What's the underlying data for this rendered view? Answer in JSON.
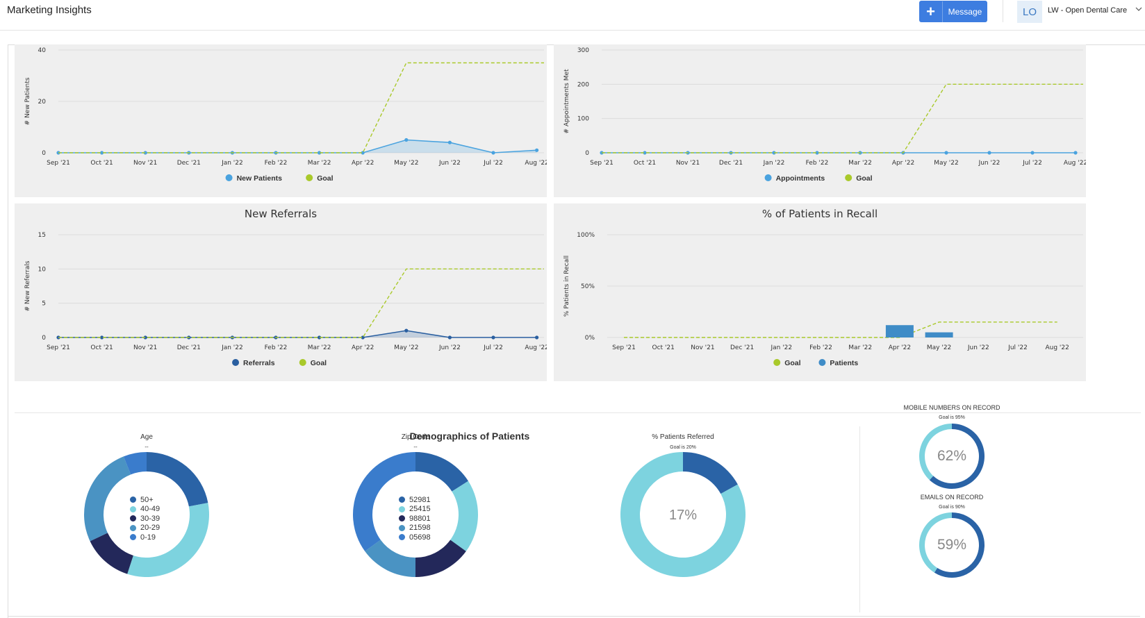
{
  "header": {
    "title": "Marketing Insights",
    "message_label": "Message",
    "avatar_initials": "LO",
    "account_name": "LW - Open Dental Care"
  },
  "months": [
    "Sep '21",
    "Oct '21",
    "Nov '21",
    "Dec '21",
    "Jan '22",
    "Feb '22",
    "Mar '22",
    "Apr '22",
    "May '22",
    "Jun '22",
    "Jul '22",
    "Aug '22"
  ],
  "chart_data": [
    {
      "type": "line",
      "title": "",
      "ylabel": "# New Patients",
      "yticks": [
        "0",
        "20",
        "40"
      ],
      "ylim": [
        0,
        40
      ],
      "categories": [
        "Sep '21",
        "Oct '21",
        "Nov '21",
        "Dec '21",
        "Jan '22",
        "Feb '22",
        "Mar '22",
        "Apr '22",
        "May '22",
        "Jun '22",
        "Jul '22",
        "Aug '22"
      ],
      "series": [
        {
          "name": "New Patients",
          "color": "#4aa3df",
          "values": [
            0,
            0,
            0,
            0,
            0,
            0,
            0,
            0,
            5,
            4,
            0,
            1
          ]
        },
        {
          "name": "Goal",
          "color": "#a9c92a",
          "dashed": true,
          "values": [
            0,
            0,
            0,
            0,
            0,
            0,
            0,
            0,
            35,
            35,
            35,
            35
          ]
        }
      ],
      "legend": "bottom"
    },
    {
      "type": "line",
      "title": "",
      "ylabel": "# Appointments Met",
      "yticks": [
        "0",
        "100",
        "200",
        "300"
      ],
      "ylim": [
        0,
        300
      ],
      "categories": [
        "Sep '21",
        "Oct '21",
        "Nov '21",
        "Dec '21",
        "Jan '22",
        "Feb '22",
        "Mar '22",
        "Apr '22",
        "May '22",
        "Jun '22",
        "Jul '22",
        "Aug '22"
      ],
      "series": [
        {
          "name": "Appointments",
          "color": "#4aa3df",
          "values": [
            0,
            0,
            0,
            0,
            0,
            0,
            0,
            0,
            0,
            0,
            0,
            0
          ]
        },
        {
          "name": "Goal",
          "color": "#a9c92a",
          "dashed": true,
          "values": [
            0,
            0,
            0,
            0,
            0,
            0,
            0,
            0,
            200,
            200,
            200,
            200
          ]
        }
      ],
      "legend": "bottom"
    },
    {
      "type": "line",
      "title": "New Referrals",
      "ylabel": "# New Referrals",
      "yticks": [
        "0",
        "5",
        "10",
        "15"
      ],
      "ylim": [
        0,
        15
      ],
      "categories": [
        "Sep '21",
        "Oct '21",
        "Nov '21",
        "Dec '21",
        "Jan '22",
        "Feb '22",
        "Mar '22",
        "Apr '22",
        "May '22",
        "Jun '22",
        "Jul '22",
        "Aug '22"
      ],
      "series": [
        {
          "name": "Referrals",
          "color": "#2a5fa0",
          "values": [
            0,
            0,
            0,
            0,
            0,
            0,
            0,
            0,
            1,
            0,
            0,
            0
          ]
        },
        {
          "name": "Goal",
          "color": "#a9c92a",
          "dashed": true,
          "values": [
            0,
            0,
            0,
            0,
            0,
            0,
            0,
            0,
            10,
            10,
            10,
            10
          ]
        }
      ],
      "legend": "bottom"
    },
    {
      "type": "bar",
      "title": "% of Patients in Recall",
      "ylabel": "% Patients in Recall",
      "yticks": [
        "0%",
        "50%",
        "100%"
      ],
      "ylim": [
        0,
        100
      ],
      "categories": [
        "Sep '21",
        "Oct '21",
        "Nov '21",
        "Dec '21",
        "Jan '22",
        "Feb '22",
        "Mar '22",
        "Apr '22",
        "May '22",
        "Jun '22",
        "Jul '22",
        "Aug '22"
      ],
      "series": [
        {
          "name": "Goal",
          "color": "#a9c92a",
          "dashed": true,
          "values": [
            0,
            0,
            0,
            0,
            0,
            0,
            0,
            0,
            15,
            15,
            15,
            15
          ]
        },
        {
          "name": "Patients",
          "color": "#3f8cc7",
          "values": [
            0,
            0,
            0,
            0,
            0,
            0,
            0,
            12,
            5,
            0,
            0,
            0
          ]
        }
      ],
      "legend": "bottom"
    }
  ],
  "demographics": {
    "title": "Demographics of Patients",
    "age": {
      "title": "Age",
      "sub": "--",
      "segments": [
        {
          "label": "50+",
          "value": 22,
          "color": "#2a63a6"
        },
        {
          "label": "40-49",
          "value": 33,
          "color": "#7dd3df"
        },
        {
          "label": "30-39",
          "value": 13,
          "color": "#23285a"
        },
        {
          "label": "20-29",
          "value": 26,
          "color": "#4a93c3"
        },
        {
          "label": "0-19",
          "value": 6,
          "color": "#3a7ccc"
        }
      ]
    },
    "zip": {
      "title": "Zip Code",
      "sub": "--",
      "segments": [
        {
          "label": "52981",
          "value": 16,
          "color": "#2a63a6"
        },
        {
          "label": "25415",
          "value": 19,
          "color": "#7dd3df"
        },
        {
          "label": "98801",
          "value": 15,
          "color": "#23285a"
        },
        {
          "label": "21598",
          "value": 15,
          "color": "#4a93c3"
        },
        {
          "label": "05698",
          "value": 35,
          "color": "#3a7ccc"
        }
      ]
    },
    "referred": {
      "title": "% Patients Referred",
      "sub": "Goal is 20%",
      "percent_label": "17%",
      "value": 17,
      "color_value": "#2a63a6",
      "color_rest": "#7dd3df"
    }
  },
  "stats": {
    "mobile": {
      "title": "MOBILE NUMBERS ON RECORD",
      "sub": "Goal is 95%",
      "label": "62%",
      "value": 62
    },
    "emails": {
      "title": "EMAILS ON RECORD",
      "sub": "Goal is 90%",
      "label": "59%",
      "value": 59
    },
    "color_value": "#2a63a6",
    "color_rest": "#7dd3df"
  }
}
